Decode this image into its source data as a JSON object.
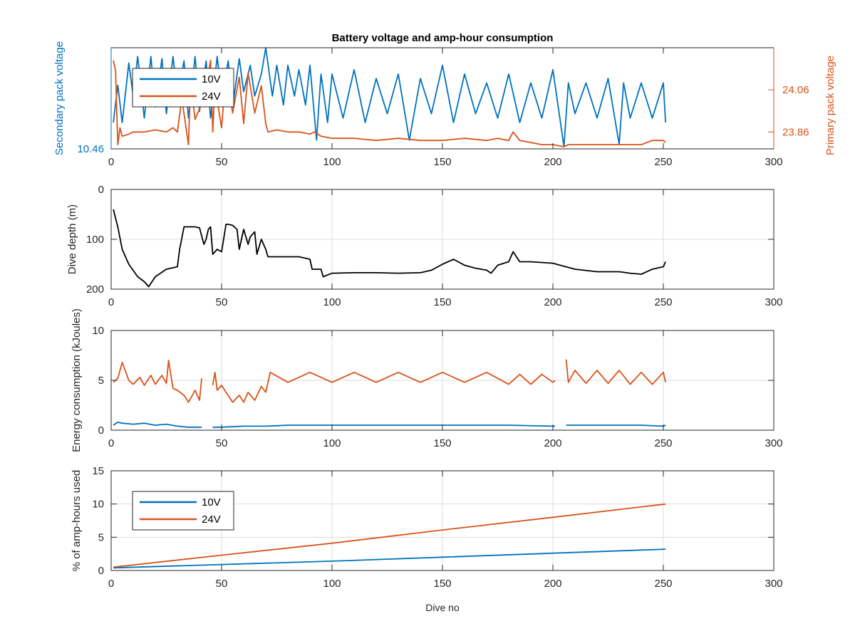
{
  "figure": {
    "background": "#ffffff",
    "colors": {
      "series_10v": "#0072BD",
      "series_24v": "#D95319",
      "depth": "#000000",
      "axis": "#262626",
      "grid": "#dcdcdc"
    }
  },
  "chart_data": [
    {
      "id": "voltage",
      "type": "line",
      "title": "Battery voltage and amp-hour consumption",
      "xlabel": "",
      "ylabel": "Secondary pack voltage",
      "ylabel_right": "Primary pack voltage",
      "xlim": [
        0,
        300
      ],
      "xticks": [
        "0",
        "50",
        "100",
        "150",
        "200",
        "250",
        "300"
      ],
      "ylim": [
        10.46,
        10.92
      ],
      "yticks": [
        {
          "value": 10.46,
          "label": "10.46"
        }
      ],
      "ylim_right": [
        23.78,
        24.26
      ],
      "yticks_right": [
        {
          "value": 23.86,
          "label": "23.86"
        },
        {
          "value": 24.06,
          "label": "24.06"
        }
      ],
      "grid": false,
      "legend": {
        "entries": [
          "10V",
          "24V"
        ],
        "placement": "top-left"
      },
      "series": [
        {
          "name": "10V",
          "axis": "left",
          "x": [
            1,
            3,
            5,
            8,
            10,
            12,
            15,
            18,
            20,
            23,
            25,
            28,
            30,
            33,
            35,
            38,
            40,
            43,
            45,
            48,
            50,
            53,
            55,
            58,
            60,
            63,
            65,
            68,
            70,
            73,
            75,
            78,
            80,
            83,
            85,
            88,
            90,
            93,
            95,
            98,
            100,
            105,
            110,
            115,
            120,
            125,
            130,
            135,
            140,
            145,
            150,
            155,
            160,
            165,
            170,
            175,
            180,
            185,
            190,
            195,
            200,
            205,
            207,
            210,
            215,
            220,
            225,
            230,
            232,
            235,
            240,
            245,
            250,
            251
          ],
          "y": [
            10.58,
            10.75,
            10.58,
            10.85,
            10.7,
            10.88,
            10.6,
            10.88,
            10.65,
            10.87,
            10.62,
            10.88,
            10.7,
            10.86,
            10.6,
            10.88,
            10.63,
            10.86,
            10.6,
            10.88,
            10.7,
            10.86,
            10.65,
            10.87,
            10.72,
            10.84,
            10.7,
            10.8,
            10.92,
            10.7,
            10.84,
            10.66,
            10.84,
            10.7,
            10.82,
            10.66,
            10.84,
            10.5,
            10.8,
            10.58,
            10.8,
            10.6,
            10.82,
            10.58,
            10.78,
            10.62,
            10.8,
            10.5,
            10.78,
            10.62,
            10.84,
            10.58,
            10.8,
            10.62,
            10.76,
            10.6,
            10.8,
            10.58,
            10.76,
            10.6,
            10.82,
            10.47,
            10.76,
            10.62,
            10.76,
            10.6,
            10.78,
            10.48,
            10.76,
            10.6,
            10.76,
            10.6,
            10.76,
            10.58
          ]
        },
        {
          "name": "24V",
          "axis": "right",
          "x": [
            1,
            2,
            3,
            4,
            5,
            8,
            10,
            15,
            20,
            25,
            28,
            30,
            32,
            35,
            36,
            38,
            42,
            45,
            46,
            47,
            50,
            52,
            55,
            58,
            60,
            62,
            65,
            68,
            70,
            71,
            75,
            80,
            85,
            90,
            92,
            95,
            100,
            110,
            120,
            130,
            140,
            150,
            160,
            170,
            175,
            180,
            182,
            185,
            190,
            195,
            200,
            205,
            207,
            210,
            220,
            230,
            240,
            245,
            250,
            251
          ],
          "y": [
            24.2,
            24.15,
            23.8,
            23.88,
            23.84,
            23.85,
            23.86,
            23.86,
            23.87,
            23.86,
            23.88,
            23.86,
            24.02,
            23.8,
            24.1,
            23.92,
            24.02,
            24.2,
            23.86,
            24.08,
            23.88,
            24.15,
            23.95,
            24.12,
            23.9,
            24.14,
            23.95,
            24.08,
            23.9,
            23.86,
            23.87,
            23.86,
            23.86,
            23.85,
            23.86,
            23.84,
            23.83,
            23.83,
            23.82,
            23.83,
            23.82,
            23.82,
            23.83,
            23.82,
            23.83,
            23.82,
            23.86,
            23.82,
            23.81,
            23.8,
            23.8,
            23.79,
            23.8,
            23.8,
            23.8,
            23.8,
            23.8,
            23.82,
            23.82,
            23.81
          ]
        }
      ]
    },
    {
      "id": "depth",
      "type": "line",
      "title": "",
      "xlabel": "",
      "ylabel": "Dive depth (m)",
      "xlim": [
        0,
        300
      ],
      "xticks": [
        "0",
        "50",
        "100",
        "150",
        "200",
        "250",
        "300"
      ],
      "ylim": [
        0,
        200
      ],
      "y_reversed": true,
      "yticks": [
        {
          "value": 0,
          "label": "0"
        },
        {
          "value": 100,
          "label": "100"
        },
        {
          "value": 200,
          "label": "200"
        }
      ],
      "grid": true,
      "series": [
        {
          "name": "",
          "x": [
            1,
            3,
            5,
            8,
            12,
            15,
            17,
            20,
            25,
            30,
            31,
            33,
            36,
            38,
            40,
            42,
            43,
            44,
            45,
            46,
            48,
            50,
            52,
            53,
            55,
            57,
            58,
            60,
            62,
            63,
            65,
            66,
            68,
            70,
            71,
            75,
            80,
            85,
            90,
            91,
            95,
            96,
            100,
            110,
            120,
            130,
            140,
            145,
            150,
            155,
            160,
            165,
            170,
            172,
            175,
            180,
            182,
            185,
            190,
            200,
            210,
            220,
            230,
            235,
            240,
            245,
            250,
            251
          ],
          "y": [
            40,
            75,
            120,
            150,
            175,
            185,
            195,
            175,
            160,
            155,
            120,
            75,
            75,
            75,
            77,
            110,
            100,
            80,
            75,
            130,
            120,
            125,
            70,
            70,
            72,
            80,
            120,
            80,
            110,
            95,
            85,
            130,
            100,
            120,
            135,
            135,
            135,
            135,
            140,
            160,
            160,
            175,
            168,
            167,
            167,
            168,
            167,
            162,
            150,
            140,
            152,
            158,
            162,
            168,
            152,
            145,
            125,
            145,
            145,
            148,
            160,
            165,
            165,
            168,
            170,
            160,
            155,
            145
          ]
        }
      ]
    },
    {
      "id": "energy",
      "type": "line",
      "title": "",
      "xlabel": "",
      "ylabel": "Energy consumption (kJoules)",
      "xlim": [
        0,
        300
      ],
      "xticks": [
        "0",
        "50",
        "100",
        "150",
        "200",
        "250",
        "300"
      ],
      "ylim": [
        0,
        10
      ],
      "yticks": [
        {
          "value": 0,
          "label": "0"
        },
        {
          "value": 5,
          "label": "5"
        },
        {
          "value": 10,
          "label": "10"
        }
      ],
      "grid": true,
      "series": [
        {
          "name": "10V",
          "x": [
            1,
            3,
            5,
            10,
            15,
            20,
            25,
            30,
            35,
            40,
            41,
            null,
            46,
            50,
            60,
            70,
            80,
            90,
            100,
            120,
            140,
            160,
            180,
            200,
            201,
            null,
            206,
            210,
            220,
            230,
            240,
            250,
            251
          ],
          "y": [
            0.5,
            0.8,
            0.7,
            0.6,
            0.7,
            0.5,
            0.6,
            0.4,
            0.3,
            0.3,
            0.3,
            null,
            0.3,
            0.3,
            0.4,
            0.4,
            0.5,
            0.5,
            0.5,
            0.5,
            0.5,
            0.5,
            0.5,
            0.4,
            0.4,
            null,
            0.5,
            0.5,
            0.5,
            0.5,
            0.5,
            0.4,
            0.5
          ]
        },
        {
          "name": "24V",
          "x": [
            1,
            3,
            5,
            8,
            10,
            13,
            15,
            18,
            20,
            23,
            25,
            26,
            28,
            30,
            33,
            35,
            38,
            40,
            41,
            null,
            46,
            47,
            48,
            50,
            52,
            55,
            58,
            60,
            62,
            65,
            68,
            70,
            71,
            72,
            80,
            90,
            100,
            110,
            120,
            130,
            140,
            150,
            160,
            170,
            180,
            185,
            190,
            195,
            200,
            201,
            null,
            206,
            207,
            210,
            215,
            220,
            225,
            230,
            235,
            240,
            245,
            250,
            251
          ],
          "y": [
            4.8,
            5.2,
            6.8,
            5.0,
            4.6,
            5.3,
            4.5,
            5.5,
            4.6,
            5.5,
            4.7,
            7.0,
            4.2,
            4.0,
            3.5,
            2.8,
            4.0,
            3.0,
            5.2,
            null,
            4.5,
            5.8,
            4.0,
            4.5,
            3.8,
            2.8,
            3.5,
            2.8,
            3.8,
            3.0,
            4.4,
            3.8,
            4.8,
            5.8,
            4.8,
            5.8,
            4.8,
            5.8,
            4.8,
            5.8,
            4.8,
            5.8,
            4.8,
            5.8,
            4.6,
            5.6,
            4.6,
            5.6,
            4.8,
            5.0,
            null,
            7.1,
            4.8,
            6.0,
            4.7,
            6.0,
            4.7,
            6.0,
            4.6,
            5.8,
            4.6,
            5.8,
            4.8
          ]
        }
      ]
    },
    {
      "id": "amphours",
      "type": "line",
      "title": "",
      "xlabel": "Dive no",
      "ylabel": "% of amp-hours used",
      "xlim": [
        0,
        300
      ],
      "xticks": [
        "0",
        "50",
        "100",
        "150",
        "200",
        "250",
        "300"
      ],
      "ylim": [
        0,
        15
      ],
      "yticks": [
        {
          "value": 0,
          "label": "0"
        },
        {
          "value": 5,
          "label": "5"
        },
        {
          "value": 10,
          "label": "10"
        },
        {
          "value": 15,
          "label": "15"
        }
      ],
      "grid": true,
      "legend": {
        "entries": [
          "10V",
          "24V"
        ],
        "placement": "top-left"
      },
      "series": [
        {
          "name": "10V",
          "x": [
            1,
            50,
            100,
            150,
            200,
            251
          ],
          "y": [
            0.4,
            0.9,
            1.4,
            2.0,
            2.6,
            3.2
          ]
        },
        {
          "name": "24V",
          "x": [
            1,
            50,
            100,
            150,
            200,
            251
          ],
          "y": [
            0.5,
            2.3,
            4.1,
            6.1,
            8.0,
            10.0
          ]
        }
      ]
    }
  ]
}
